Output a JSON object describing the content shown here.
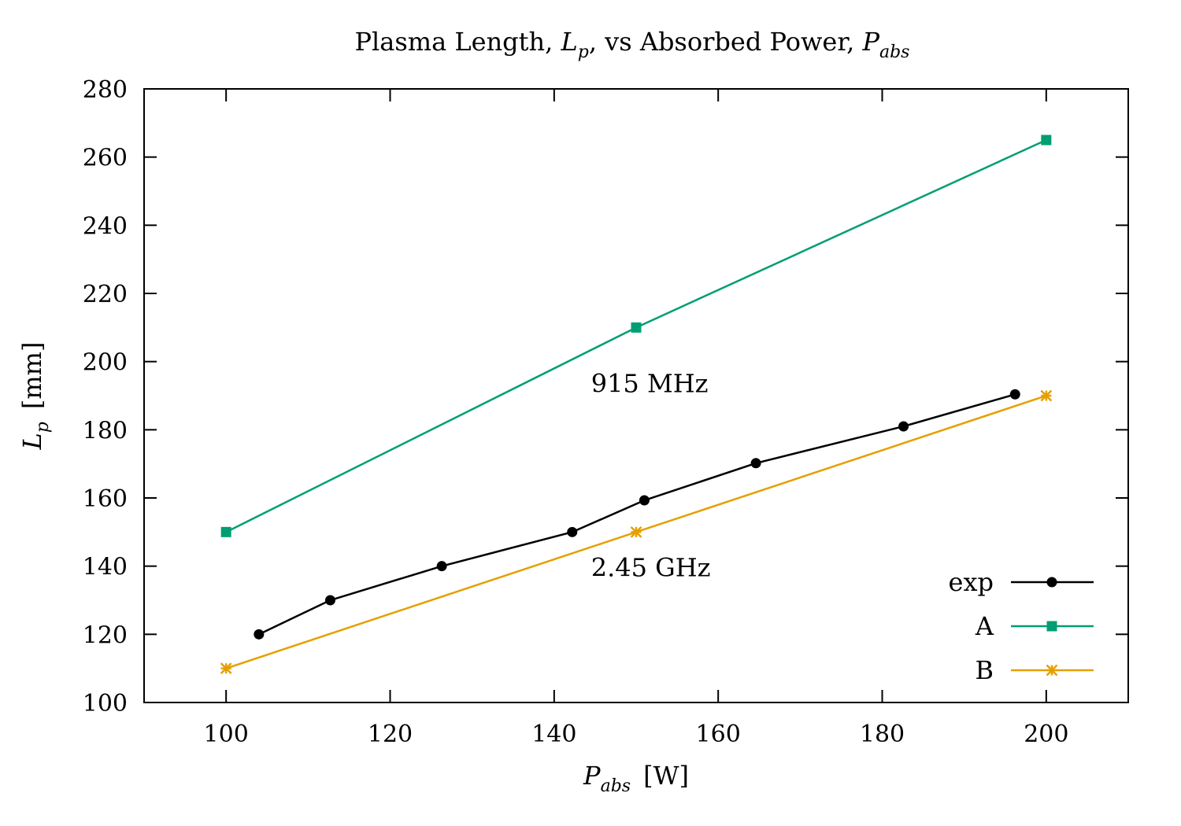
{
  "chart_data": {
    "type": "line",
    "title": {
      "prefix": "Plasma Length, ",
      "sym1_main": "L",
      "sym1_sub": "p",
      "middle": ", vs Absorbed Power, ",
      "sym2_main": "P",
      "sym2_sub": "abs"
    },
    "xlabel": {
      "main": "P",
      "sub": "abs",
      "unit": "[W]"
    },
    "ylabel": {
      "main": "L",
      "sub": "p",
      "unit": "[mm]"
    },
    "xlim": [
      90,
      210
    ],
    "ylim": [
      100,
      280
    ],
    "xticks": [
      100,
      120,
      140,
      160,
      180,
      200
    ],
    "yticks": [
      100,
      120,
      140,
      160,
      180,
      200,
      220,
      240,
      260,
      280
    ],
    "grid": false,
    "legend_position": "bottom-right",
    "series": [
      {
        "name": "exp",
        "color": "#000000",
        "marker": "circle",
        "points": [
          [
            104,
            120
          ],
          [
            112.7,
            130
          ],
          [
            126.3,
            140
          ],
          [
            142.2,
            150
          ],
          [
            151,
            159.3
          ],
          [
            164.6,
            170.2
          ],
          [
            182.6,
            181
          ],
          [
            196.2,
            190.4
          ]
        ]
      },
      {
        "name": "A",
        "color": "#009e73",
        "marker": "square",
        "points": [
          [
            100,
            150
          ],
          [
            150,
            210
          ],
          [
            200,
            265
          ]
        ]
      },
      {
        "name": "B",
        "color": "#e69f00",
        "marker": "asterisk",
        "points": [
          [
            100,
            110
          ],
          [
            150,
            150
          ],
          [
            200,
            190
          ]
        ]
      }
    ],
    "annotations": [
      {
        "text": "915 MHz",
        "x": 144.5,
        "y": 191
      },
      {
        "text": "2.45 GHz",
        "x": 144.5,
        "y": 137
      }
    ]
  }
}
